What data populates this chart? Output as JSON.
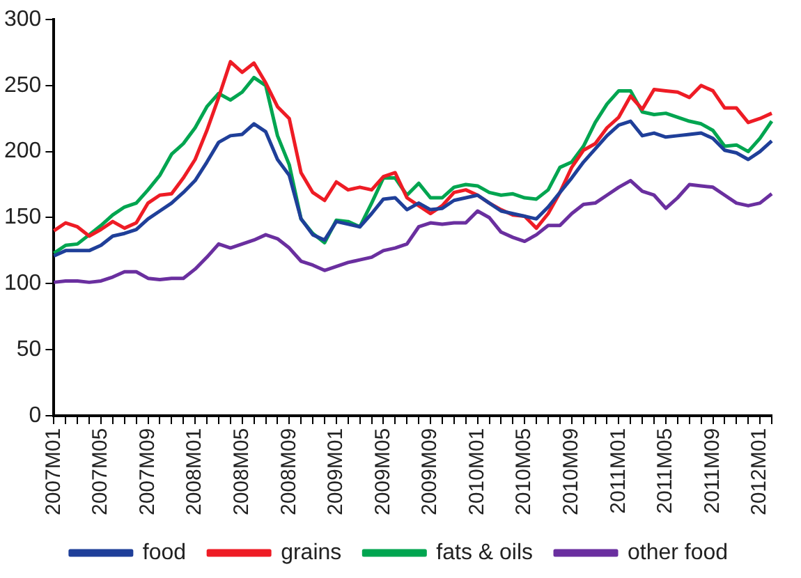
{
  "chart_data": {
    "type": "line",
    "categories": [
      "2007M01",
      null,
      null,
      null,
      "2007M05",
      null,
      null,
      null,
      "2007M09",
      null,
      null,
      null,
      "2008M01",
      null,
      null,
      null,
      "2008M05",
      null,
      null,
      null,
      "2008M09",
      null,
      null,
      null,
      "2009M01",
      null,
      null,
      null,
      "2009M05",
      null,
      null,
      null,
      "2009M09",
      null,
      null,
      null,
      "2010M01",
      null,
      null,
      null,
      "2010M05",
      null,
      null,
      null,
      "2010M09",
      null,
      null,
      null,
      "2011M01",
      null,
      null,
      null,
      "2011M05",
      null,
      null,
      null,
      "2011M09",
      null,
      null,
      null,
      "2012M01",
      null
    ],
    "series": [
      {
        "name": "food",
        "color": "#1f3f99",
        "values": [
          121,
          125,
          125,
          125,
          129,
          136,
          138,
          141,
          149,
          155,
          161,
          169,
          178,
          192,
          207,
          212,
          213,
          221,
          215,
          194,
          182,
          149,
          137,
          133,
          147,
          145,
          143,
          153,
          164,
          165,
          156,
          161,
          156,
          157,
          163,
          165,
          167,
          161,
          155,
          153,
          151,
          149,
          158,
          169,
          180,
          192,
          202,
          212,
          220,
          223,
          212,
          214,
          211,
          212,
          213,
          214,
          210,
          201,
          199,
          194,
          200,
          208
        ]
      },
      {
        "name": "grains",
        "color": "#ee1c25",
        "values": [
          140,
          146,
          143,
          136,
          141,
          147,
          142,
          146,
          161,
          167,
          168,
          180,
          194,
          216,
          241,
          268,
          260,
          267,
          252,
          234,
          225,
          184,
          169,
          163,
          177,
          171,
          173,
          171,
          181,
          184,
          165,
          159,
          153,
          159,
          169,
          171,
          167,
          161,
          156,
          152,
          151,
          142,
          153,
          169,
          188,
          201,
          206,
          218,
          226,
          242,
          232,
          247,
          246,
          245,
          241,
          250,
          246,
          233,
          233,
          222,
          225,
          229
        ]
      },
      {
        "name": "fats & oils",
        "color": "#00a550",
        "values": [
          123,
          129,
          130,
          137,
          144,
          152,
          158,
          161,
          171,
          182,
          198,
          206,
          218,
          234,
          244,
          239,
          245,
          256,
          250,
          212,
          190,
          149,
          138,
          131,
          148,
          147,
          143,
          161,
          180,
          180,
          167,
          176,
          165,
          165,
          173,
          175,
          174,
          169,
          167,
          168,
          165,
          164,
          171,
          188,
          192,
          204,
          222,
          236,
          246,
          246,
          230,
          228,
          229,
          226,
          223,
          221,
          216,
          204,
          205,
          200,
          210,
          223
        ]
      },
      {
        "name": "other food",
        "color": "#6a2f9f",
        "values": [
          101,
          102,
          102,
          101,
          102,
          105,
          109,
          109,
          104,
          103,
          104,
          104,
          111,
          120,
          130,
          127,
          130,
          133,
          137,
          134,
          127,
          117,
          114,
          110,
          113,
          116,
          118,
          120,
          125,
          127,
          130,
          143,
          146,
          145,
          146,
          146,
          155,
          150,
          139,
          135,
          132,
          137,
          144,
          144,
          153,
          160,
          161,
          167,
          173,
          178,
          170,
          167,
          157,
          165,
          175,
          174,
          173,
          167,
          161,
          159,
          161,
          168
        ]
      }
    ],
    "ylim": [
      0,
      300
    ],
    "yticks": [
      0,
      50,
      100,
      150,
      200,
      250,
      300
    ],
    "grid": false,
    "legend": "bottom",
    "marker": "none",
    "line_style": "solid"
  }
}
